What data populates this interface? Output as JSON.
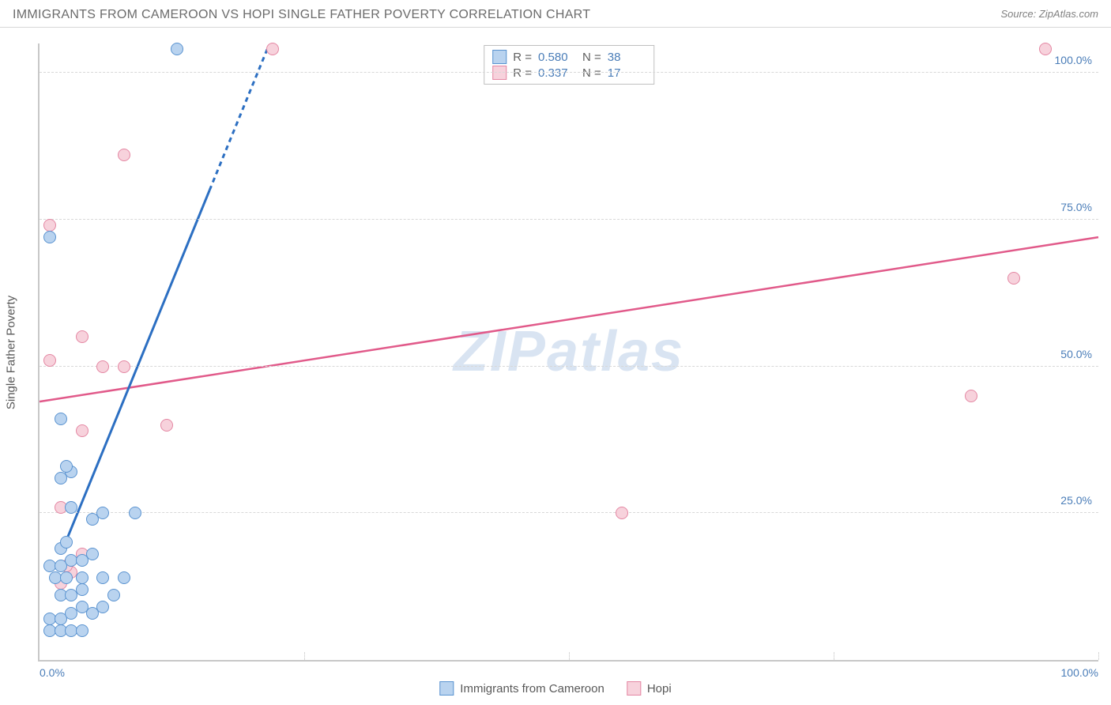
{
  "header": {
    "title": "IMMIGRANTS FROM CAMEROON VS HOPI SINGLE FATHER POVERTY CORRELATION CHART",
    "source": "Source: ZipAtlas.com"
  },
  "watermark": "ZIPatlas",
  "chart": {
    "type": "scatter",
    "ylabel": "Single Father Poverty",
    "xlim": [
      0,
      100
    ],
    "ylim": [
      0,
      105
    ],
    "ytick_positions": [
      25,
      50,
      75,
      100
    ],
    "ytick_labels": [
      "25.0%",
      "50.0%",
      "75.0%",
      "100.0%"
    ],
    "xtick_positions": [
      0,
      50,
      100
    ],
    "xtick_labels": [
      "0.0%",
      "",
      "100.0%"
    ],
    "xtick_marker_positions": [
      25,
      50,
      75,
      100
    ],
    "grid_color": "#d8d8d8",
    "axis_color": "#c8c8c8",
    "background_color": "#ffffff",
    "label_fontsize": 15,
    "tick_fontsize": 14,
    "tick_color": "#4a7db8",
    "marker_radius": 8,
    "marker_border_width": 1.5
  },
  "series": {
    "a": {
      "label": "Immigrants from Cameroon",
      "fill_color": "#b9d3ef",
      "border_color": "#5a93d0",
      "line_color": "#2c6fc2",
      "line_width": 3,
      "r": "0.580",
      "n": "38",
      "trend": {
        "x1": 2,
        "y1": 18,
        "x2": 21.5,
        "y2": 104,
        "dash_from_y": 80
      },
      "points": [
        [
          1,
          5
        ],
        [
          2,
          5
        ],
        [
          3,
          5
        ],
        [
          4,
          5
        ],
        [
          1,
          7
        ],
        [
          2,
          7
        ],
        [
          3,
          8
        ],
        [
          5,
          8
        ],
        [
          4,
          9
        ],
        [
          6,
          9
        ],
        [
          2,
          11
        ],
        [
          3,
          11
        ],
        [
          7,
          11
        ],
        [
          4,
          12
        ],
        [
          1.5,
          14
        ],
        [
          2.5,
          14
        ],
        [
          4,
          14
        ],
        [
          6,
          14
        ],
        [
          8,
          14
        ],
        [
          1,
          16
        ],
        [
          2,
          16
        ],
        [
          3,
          17
        ],
        [
          4,
          17
        ],
        [
          5,
          18
        ],
        [
          2,
          19
        ],
        [
          2.5,
          20
        ],
        [
          5,
          24
        ],
        [
          6,
          25
        ],
        [
          3,
          26
        ],
        [
          9,
          25
        ],
        [
          2,
          31
        ],
        [
          3,
          32
        ],
        [
          2.5,
          33
        ],
        [
          2,
          41
        ],
        [
          1,
          72
        ],
        [
          13,
          104
        ]
      ]
    },
    "b": {
      "label": "Hopi",
      "fill_color": "#f7d2dc",
      "border_color": "#e487a3",
      "line_color": "#e15a8a",
      "line_width": 2.5,
      "r": "0.337",
      "n": "17",
      "trend": {
        "x1": 0,
        "y1": 44,
        "x2": 100,
        "y2": 72
      },
      "points": [
        [
          2,
          13
        ],
        [
          3,
          15
        ],
        [
          2.5,
          16
        ],
        [
          4,
          18
        ],
        [
          2,
          26
        ],
        [
          55,
          25
        ],
        [
          4,
          39
        ],
        [
          12,
          40
        ],
        [
          88,
          45
        ],
        [
          6,
          50
        ],
        [
          8,
          50
        ],
        [
          1,
          51
        ],
        [
          4,
          55
        ],
        [
          92,
          65
        ],
        [
          1,
          74
        ],
        [
          8,
          86
        ],
        [
          22,
          104
        ],
        [
          95,
          104
        ]
      ]
    }
  },
  "legend_top": {
    "rows": [
      {
        "series": "a",
        "r_label": "R =",
        "n_label": "N ="
      },
      {
        "series": "b",
        "r_label": "R =",
        "n_label": "N ="
      }
    ]
  },
  "legend_bottom": {
    "items": [
      {
        "series": "a"
      },
      {
        "series": "b"
      }
    ]
  }
}
